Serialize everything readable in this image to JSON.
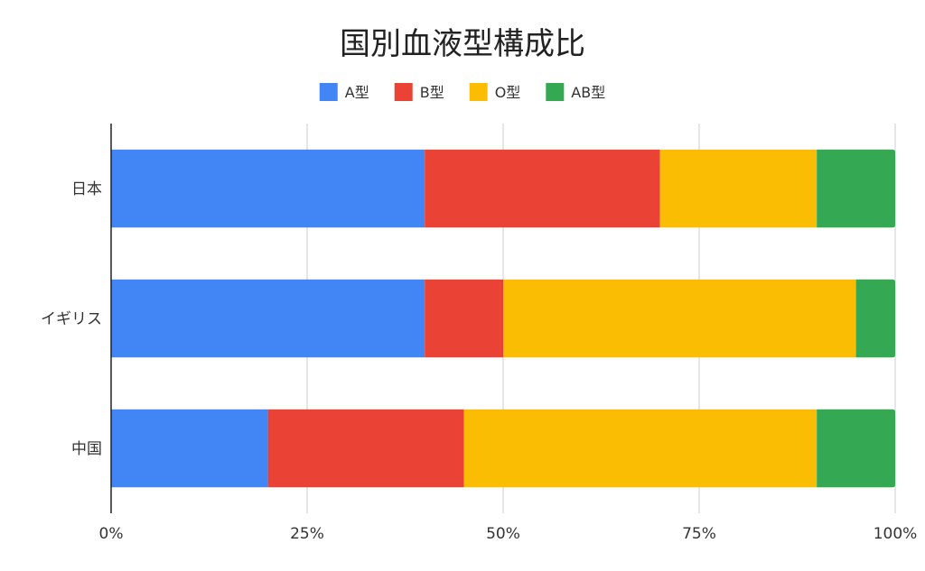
{
  "chart_data": {
    "type": "bar",
    "orientation": "horizontal",
    "stacked": "percent",
    "title": "国別血液型構成比",
    "categories": [
      "日本",
      "イギリス",
      "中国"
    ],
    "series": [
      {
        "name": "A型",
        "color": "#4285f4",
        "values": [
          40,
          40,
          20
        ]
      },
      {
        "name": "B型",
        "color": "#ea4335",
        "values": [
          30,
          10,
          25
        ]
      },
      {
        "name": "O型",
        "color": "#fbbc04",
        "values": [
          20,
          45,
          45
        ]
      },
      {
        "name": "AB型",
        "color": "#34a853",
        "values": [
          10,
          5,
          10
        ]
      }
    ],
    "xticks": [
      "0%",
      "25%",
      "50%",
      "75%",
      "100%"
    ],
    "xlim": [
      0,
      100
    ],
    "grid": true,
    "legend_position": "top"
  }
}
